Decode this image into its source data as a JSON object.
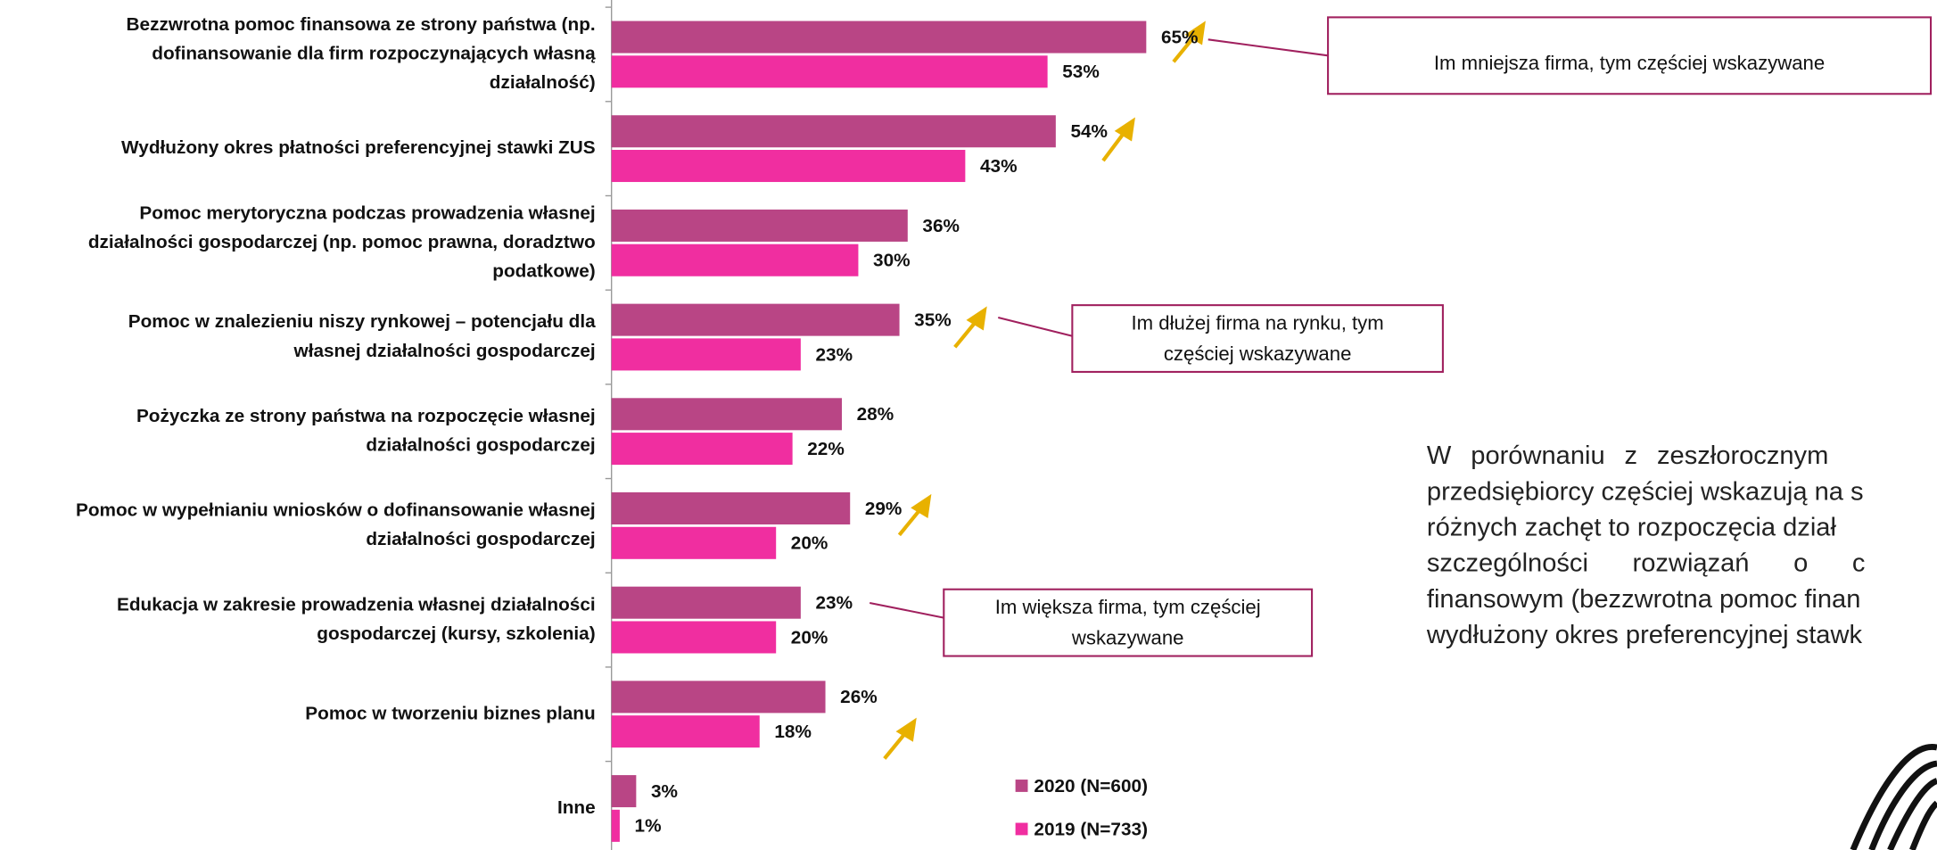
{
  "chart_data": {
    "type": "hbar",
    "categories": [
      [
        "Bezzwrotna pomoc finansowa ze strony państwa (np.",
        "dofinansowanie dla firm rozpoczynających własną",
        "działalność)"
      ],
      [
        "Wydłużony okres płatności preferencyjnej stawki ZUS"
      ],
      [
        "Pomoc merytoryczna podczas prowadzenia własnej",
        "działalności gospodarczej (np. pomoc prawna, doradztwo",
        "podatkowe)"
      ],
      [
        "Pomoc w znalezieniu niszy rynkowej – potencjału dla",
        "własnej działalności gospodarczej"
      ],
      [
        "Pożyczka ze strony państwa na rozpoczęcie własnej",
        "działalności gospodarczej"
      ],
      [
        "Pomoc w wypełnianiu wniosków o dofinansowanie własnej",
        "działalności gospodarczej"
      ],
      [
        "Edukacja w zakresie prowadzenia własnej działalności",
        "gospodarczej (kursy, szkolenia)"
      ],
      [
        "Pomoc w tworzeniu biznes planu"
      ],
      [
        "Inne"
      ]
    ],
    "series": [
      {
        "name": "2020 (N=600)",
        "color": "#b94585",
        "values": [
          65,
          54,
          36,
          35,
          28,
          29,
          23,
          26,
          3
        ],
        "value_labels": [
          "65%",
          "54%",
          "36%",
          "35%",
          "28%",
          "29%",
          "23%",
          "26%",
          "3%"
        ]
      },
      {
        "name": "2019 (N=733)",
        "color": "#f02ea0",
        "values": [
          53,
          43,
          30,
          23,
          22,
          20,
          20,
          18,
          1
        ],
        "value_labels": [
          "53%",
          "43%",
          "30%",
          "23%",
          "22%",
          "20%",
          "20%",
          "18%",
          "1%"
        ]
      }
    ],
    "xlim": [
      0,
      100
    ],
    "annotations": [
      {
        "lines": [
          "Im mniejsza firma, tym częściej wskazywane"
        ]
      },
      {
        "lines": [
          "Im dłużej firma na rynku, tym",
          "częściej wskazywane"
        ]
      },
      {
        "lines": [
          "Im większa firma, tym częściej",
          "wskazywane"
        ]
      }
    ],
    "note_lines": [
      "W porównaniu z zeszłorocznym",
      "przedsiębiorcy częściej wskazują na s",
      "różnych zachęt to rozpoczęcia dział",
      "szczególności rozwiązań o c",
      "finansowym (bezzwrotna pomoc finan",
      "wydłużony okres preferencyjnej stawk"
    ]
  }
}
